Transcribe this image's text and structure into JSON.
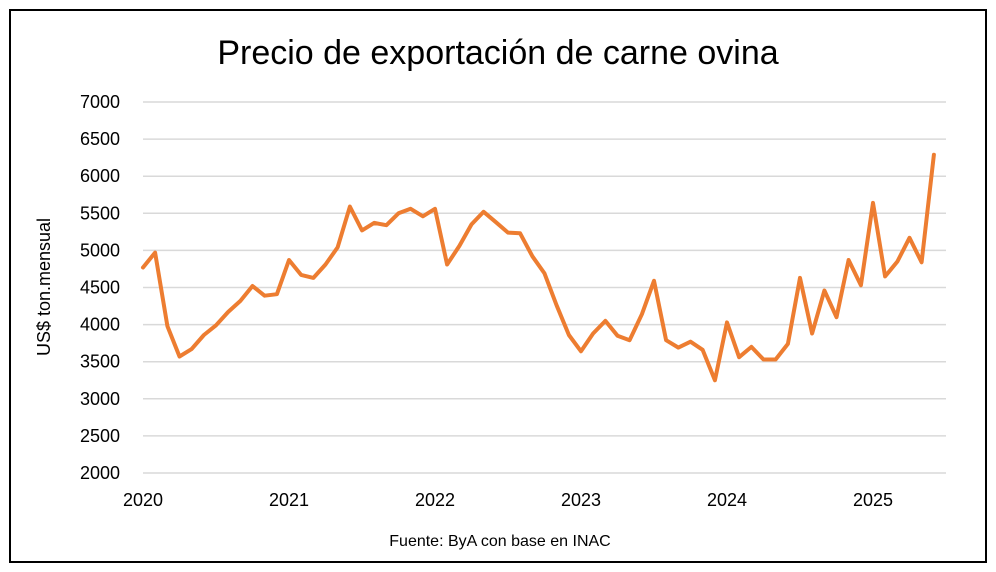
{
  "chart_data": {
    "type": "line",
    "title": "Precio de exportación de carne ovina",
    "ylabel": "US$ ton.mensual",
    "xlabel": "",
    "source": "Fuente: ByA con base en INAC",
    "ylim": [
      2000,
      7000
    ],
    "yticks": [
      "7000",
      "6500",
      "6000",
      "5500",
      "5000",
      "4500",
      "4000",
      "3500",
      "3000",
      "2500",
      "2000"
    ],
    "xlim": [
      2020.0,
      2025.5
    ],
    "xticks": [
      "2020",
      "2021",
      "2022",
      "2023",
      "2024",
      "2025"
    ],
    "grid": true,
    "legend": "none",
    "color": "#ed7d31",
    "series": [
      {
        "x": [
          2020.0,
          2020.083,
          2020.167,
          2020.25,
          2020.333,
          2020.417,
          2020.5,
          2020.583,
          2020.667,
          2020.75,
          2020.833,
          2020.917,
          2021.0,
          2021.083,
          2021.167,
          2021.25,
          2021.333,
          2021.417,
          2021.5,
          2021.583,
          2021.667,
          2021.75,
          2021.833,
          2021.917,
          2022.0,
          2022.083,
          2022.167,
          2022.25,
          2022.333,
          2022.417,
          2022.5,
          2022.583,
          2022.667,
          2022.75,
          2022.833,
          2022.917,
          2023.0,
          2023.083,
          2023.167,
          2023.25,
          2023.333,
          2023.417,
          2023.5,
          2023.583,
          2023.667,
          2023.75,
          2023.833,
          2023.917,
          2024.0,
          2024.083,
          2024.167,
          2024.25,
          2024.333,
          2024.417,
          2024.5,
          2024.583,
          2024.667,
          2024.75,
          2024.833,
          2024.917,
          2025.0,
          2025.083,
          2025.167,
          2025.25,
          2025.333,
          2025.417
        ],
        "values": [
          4770,
          4970,
          3980,
          3570,
          3670,
          3860,
          3990,
          4170,
          4320,
          4520,
          4390,
          4410,
          4870,
          4670,
          4630,
          4810,
          5040,
          5590,
          5270,
          5370,
          5340,
          5500,
          5560,
          5460,
          5560,
          4810,
          5060,
          5350,
          5520,
          5380,
          5240,
          5230,
          4920,
          4690,
          4260,
          3860,
          3640,
          3880,
          4050,
          3850,
          3790,
          4140,
          4590,
          3790,
          3690,
          3770,
          3660,
          3250,
          4030,
          3560,
          3700,
          3530,
          3530,
          3740,
          4630,
          3880,
          4460,
          4100,
          4870,
          4530,
          5640,
          4650,
          4850,
          5170,
          4840,
          6290
        ]
      }
    ]
  }
}
